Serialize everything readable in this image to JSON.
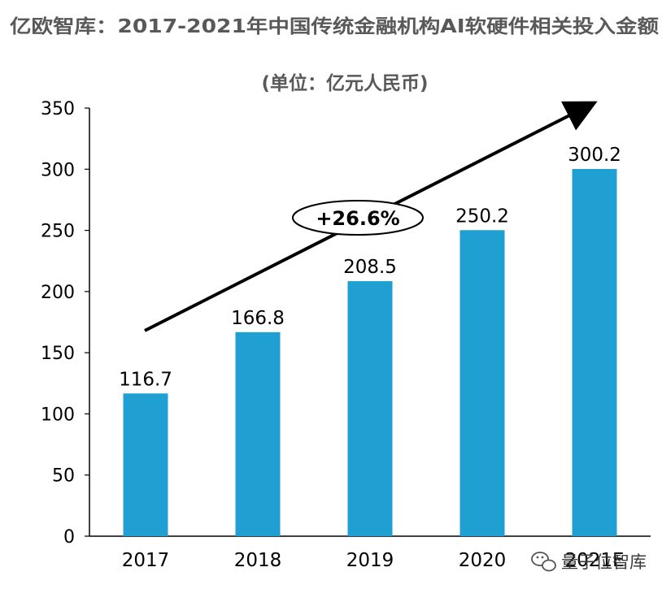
{
  "chart_data": {
    "type": "bar",
    "title": "亿欧智库：2017-2021年中国传统金融机构AI软硬件相关投入金额",
    "subtitle": "(单位：亿元人民币)",
    "categories": [
      "2017",
      "2018",
      "2019",
      "2020",
      "2021E"
    ],
    "values": [
      116.7,
      166.8,
      208.5,
      250.2,
      300.2
    ],
    "data_labels": [
      "116.7",
      "166.8",
      "208.5",
      "250.2",
      "300.2"
    ],
    "ylim": [
      0,
      350
    ],
    "yticks": [
      "0",
      "50",
      "100",
      "150",
      "200",
      "250",
      "300",
      "350"
    ],
    "grid": false,
    "legend": "none",
    "bar_color": "#1f9fd2",
    "annotation": "+26.6%"
  },
  "watermark": {
    "text": "量子位智库",
    "icon": "wechat-icon"
  }
}
